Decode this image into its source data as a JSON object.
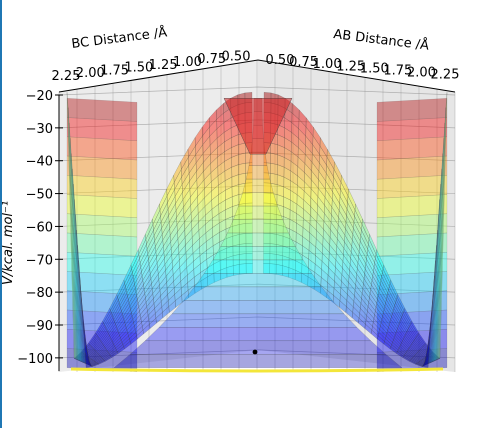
{
  "chart_data": {
    "type": "surface",
    "xlabel": "BC Distance /Å",
    "ylabel": "AB Distance /Å",
    "zlabel": "V/kcal. mol⁻¹",
    "bc_ticks": [
      "2.25",
      "2.00",
      "1.75",
      "1.50",
      "1.25",
      "1.00",
      "0.75",
      "0.50"
    ],
    "ab_ticks": [
      "0.50",
      "0.75",
      "1.00",
      "1.25",
      "1.50",
      "1.75",
      "2.00",
      "2.25"
    ],
    "z_ticks": [
      "−20",
      "−30",
      "−40",
      "−50",
      "−60",
      "−70",
      "−80",
      "−90",
      "−100"
    ],
    "z_values": [
      -20,
      -30,
      -40,
      -50,
      -60,
      -70,
      -80,
      -90,
      -100
    ],
    "zlim": [
      -104,
      -20
    ],
    "colormap": "jet",
    "grid": true,
    "trajectory_point_visible": true
  },
  "colors": {
    "left_rule": "#1f77b4",
    "grid": "#8c8c8c",
    "pane": "#ececec",
    "axis": "#000000",
    "floor_contour": "#f3e63a",
    "marker": "#000000"
  }
}
